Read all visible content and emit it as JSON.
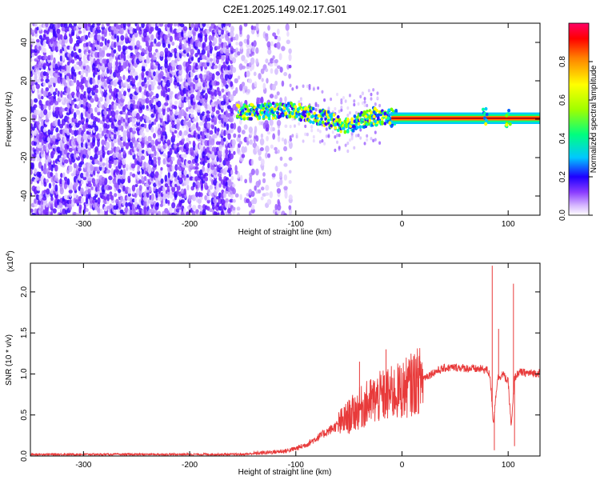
{
  "chart_data": [
    {
      "type": "heatmap",
      "title": "C2E1.2025.149.02.17.G01",
      "xlabel": "Height of straight line (km)",
      "ylabel": "Frequency (Hz)",
      "xlim": [
        -350,
        130
      ],
      "ylim": [
        -50,
        50
      ],
      "x_ticks": [
        -300,
        -200,
        -100,
        0,
        100
      ],
      "y_ticks": [
        -40,
        -20,
        0,
        20,
        40
      ],
      "grid": false,
      "colorbar": {
        "label": "Normalized spectral amplitude",
        "range": [
          0,
          1
        ],
        "ticks": [
          0.0,
          0.2,
          0.4,
          0.6,
          0.8
        ],
        "colors": [
          "#ffffff",
          "#c8a0ff",
          "#6a00ff",
          "#0000ff",
          "#00c8ff",
          "#00ff80",
          "#a0ff00",
          "#ffff00",
          "#ff8000",
          "#ff0000",
          "#ff0066"
        ]
      },
      "ridge": [
        {
          "x": -150,
          "y": 4
        },
        {
          "x": -130,
          "y": 4
        },
        {
          "x": -110,
          "y": 5
        },
        {
          "x": -90,
          "y": 3
        },
        {
          "x": -70,
          "y": 0
        },
        {
          "x": -55,
          "y": -3
        },
        {
          "x": -45,
          "y": -2
        },
        {
          "x": -35,
          "y": 0
        },
        {
          "x": -25,
          "y": 1
        },
        {
          "x": -10,
          "y": 0.5
        },
        {
          "x": 0,
          "y": 0.5
        },
        {
          "x": 130,
          "y": 0.5
        }
      ]
    },
    {
      "type": "line",
      "xlabel": "Height of straight line (km)",
      "ylabel": "SNR (10 * v/v)",
      "scale_label": "(x10",
      "scale_exp": "4",
      "scale_close": ")",
      "xlim": [
        -350,
        130
      ],
      "ylim": [
        0,
        2.35
      ],
      "x_ticks": [
        -300,
        -200,
        -100,
        0,
        100
      ],
      "y_ticks": [
        0.0,
        0.5,
        1.0,
        1.5,
        2.0
      ],
      "y_tick_labels": [
        "0.0",
        "0.5",
        "1.0",
        "1.5",
        "2.0"
      ],
      "grid": false,
      "series": [
        {
          "color": "#e83a3a",
          "x": [
            -350,
            -300,
            -250,
            -200,
            -150,
            -130,
            -120,
            -110,
            -100,
            -90,
            -80,
            -70,
            -60,
            -50,
            -40,
            -30,
            -20,
            -10,
            0,
            10,
            20,
            30,
            40,
            50,
            60,
            70,
            75,
            80,
            83,
            86,
            90,
            95,
            100,
            103,
            106,
            110,
            120,
            130
          ],
          "y": [
            0.02,
            0.02,
            0.02,
            0.02,
            0.02,
            0.04,
            0.05,
            0.06,
            0.09,
            0.14,
            0.22,
            0.3,
            0.38,
            0.48,
            0.58,
            0.66,
            0.72,
            0.76,
            0.8,
            0.88,
            0.95,
            1.02,
            1.07,
            1.08,
            1.07,
            1.06,
            1.06,
            1.05,
            0.98,
            0.4,
            0.95,
            1.0,
            0.9,
            0.35,
            0.95,
            1.02,
            1.01,
            1.01
          ]
        }
      ],
      "peaks": [
        {
          "x": -40,
          "y": 1.15
        },
        {
          "x": -15,
          "y": 1.3
        },
        {
          "x": 85,
          "y": 2.32
        },
        {
          "x": 87,
          "y": 0.07
        },
        {
          "x": 91,
          "y": 1.55
        },
        {
          "x": 105,
          "y": 2.1
        },
        {
          "x": 106,
          "y": 0.12
        }
      ]
    }
  ]
}
